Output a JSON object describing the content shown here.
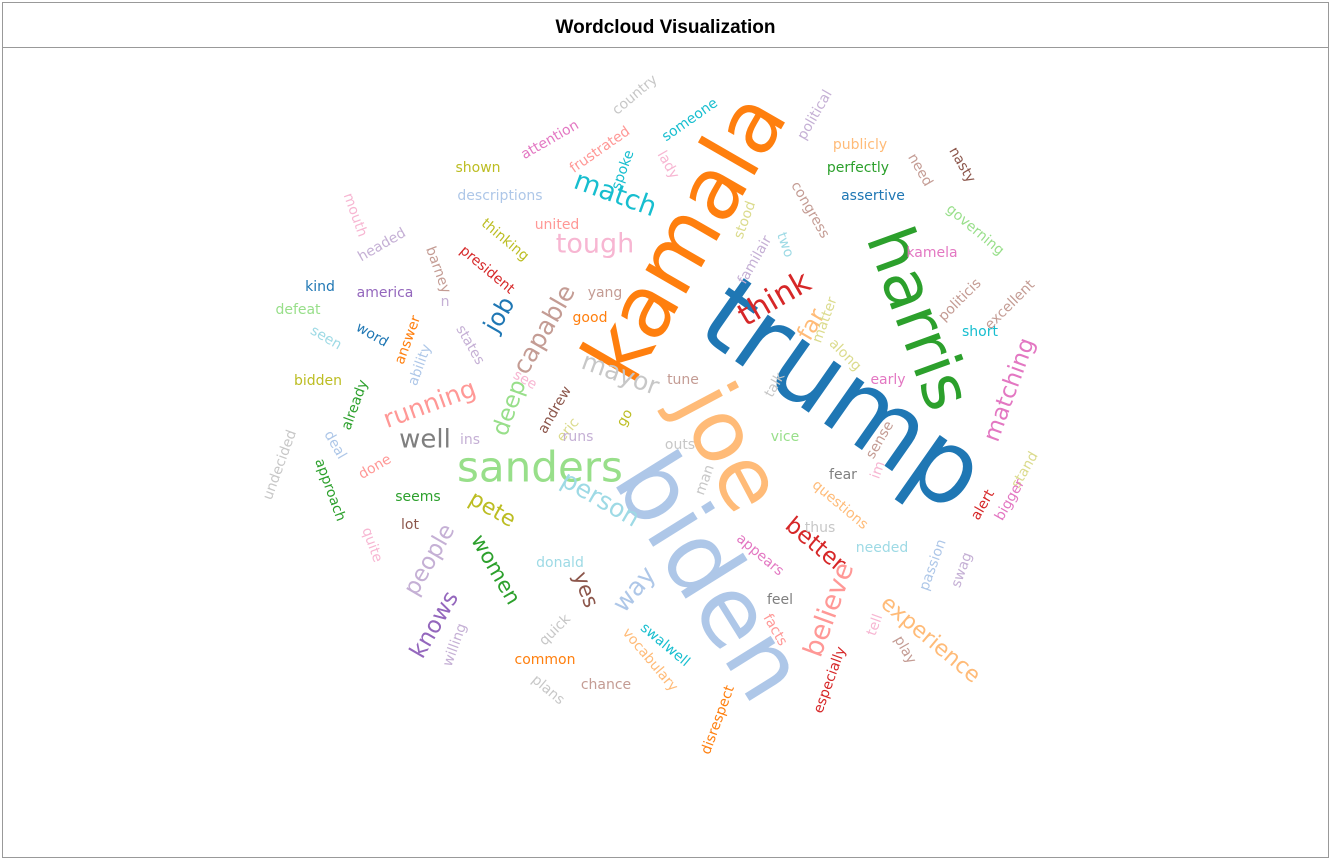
{
  "header": {
    "title": "Wordcloud Visualization"
  },
  "words": [
    {
      "text": "trump",
      "color": "#1f77b4"
    },
    {
      "text": "biden",
      "color": "#aec7e8"
    },
    {
      "text": "kamala",
      "color": "#ff7f0e"
    },
    {
      "text": "joe",
      "color": "#ffbb78"
    },
    {
      "text": "harris",
      "color": "#2ca02c"
    },
    {
      "text": "sanders",
      "color": "#98df8a"
    },
    {
      "text": "think",
      "color": "#d62728"
    },
    {
      "text": "tough",
      "color": "#f7b6d2"
    },
    {
      "text": "match",
      "color": "#17becf"
    },
    {
      "text": "capable",
      "color": "#c49c94"
    },
    {
      "text": "job",
      "color": "#1f77b4"
    },
    {
      "text": "mayor",
      "color": "#c7c7c7"
    },
    {
      "text": "running",
      "color": "#ff9896"
    },
    {
      "text": "well",
      "color": "#7f7f7f"
    },
    {
      "text": "deep",
      "color": "#98df8a"
    },
    {
      "text": "far",
      "color": "#ffbb78"
    },
    {
      "text": "person",
      "color": "#9edae5"
    },
    {
      "text": "pete",
      "color": "#bcbd22"
    },
    {
      "text": "people",
      "color": "#c5b0d5"
    },
    {
      "text": "women",
      "color": "#2ca02c"
    },
    {
      "text": "knows",
      "color": "#9467bd"
    },
    {
      "text": "way",
      "color": "#aec7e8"
    },
    {
      "text": "yes",
      "color": "#8c564b"
    },
    {
      "text": "better",
      "color": "#d62728"
    },
    {
      "text": "believe",
      "color": "#ff9896"
    },
    {
      "text": "experience",
      "color": "#ffbb78"
    },
    {
      "text": "matching",
      "color": "#e377c2"
    },
    {
      "text": "questions",
      "color": "#ffbb78"
    },
    {
      "text": "country",
      "color": "#c7c7c7"
    },
    {
      "text": "someone",
      "color": "#17becf"
    },
    {
      "text": "political",
      "color": "#c5b0d5"
    },
    {
      "text": "attention",
      "color": "#e377c2"
    },
    {
      "text": "frustrated",
      "color": "#ff9896"
    },
    {
      "text": "shown",
      "color": "#bcbd22"
    },
    {
      "text": "publicly",
      "color": "#ffbb78"
    },
    {
      "text": "perfectly",
      "color": "#2ca02c"
    },
    {
      "text": "nasty",
      "color": "#8c564b"
    },
    {
      "text": "need",
      "color": "#c49c94"
    },
    {
      "text": "spoke",
      "color": "#17becf"
    },
    {
      "text": "lady",
      "color": "#f7b6d2"
    },
    {
      "text": "descriptions",
      "color": "#aec7e8"
    },
    {
      "text": "congress",
      "color": "#c49c94"
    },
    {
      "text": "assertive",
      "color": "#1f77b4"
    },
    {
      "text": "mouth",
      "color": "#f7b6d2"
    },
    {
      "text": "governing",
      "color": "#98df8a"
    },
    {
      "text": "united",
      "color": "#ff9896"
    },
    {
      "text": "thinking",
      "color": "#bcbd22"
    },
    {
      "text": "stood",
      "color": "#dbdb8d"
    },
    {
      "text": "headed",
      "color": "#c5b0d5"
    },
    {
      "text": "barney",
      "color": "#c49c94"
    },
    {
      "text": "familair",
      "color": "#c5b0d5"
    },
    {
      "text": "two",
      "color": "#9edae5"
    },
    {
      "text": "president",
      "color": "#d62728"
    },
    {
      "text": "kamela",
      "color": "#e377c2"
    },
    {
      "text": "kind",
      "color": "#1f77b4"
    },
    {
      "text": "america",
      "color": "#9467bd"
    },
    {
      "text": "yang",
      "color": "#c49c94"
    },
    {
      "text": "excellent",
      "color": "#c49c94"
    },
    {
      "text": "politicis",
      "color": "#c49c94"
    },
    {
      "text": "defeat",
      "color": "#98df8a"
    },
    {
      "text": "n",
      "color": "#c5b0d5"
    },
    {
      "text": "good",
      "color": "#ff7f0e"
    },
    {
      "text": "matter",
      "color": "#dbdb8d"
    },
    {
      "text": "word",
      "color": "#1f77b4"
    },
    {
      "text": "seen",
      "color": "#9edae5"
    },
    {
      "text": "answer",
      "color": "#ff7f0e"
    },
    {
      "text": "states",
      "color": "#c5b0d5"
    },
    {
      "text": "ability",
      "color": "#aec7e8"
    },
    {
      "text": "short",
      "color": "#17becf"
    },
    {
      "text": "along",
      "color": "#dbdb8d"
    },
    {
      "text": "bidden",
      "color": "#bcbd22"
    },
    {
      "text": "tune",
      "color": "#c49c94"
    },
    {
      "text": "see",
      "color": "#f7b6d2"
    },
    {
      "text": "talk",
      "color": "#c7c7c7"
    },
    {
      "text": "early",
      "color": "#e377c2"
    },
    {
      "text": "already",
      "color": "#2ca02c"
    },
    {
      "text": "andrew",
      "color": "#8c564b"
    },
    {
      "text": "eric",
      "color": "#dbdb8d"
    },
    {
      "text": "go",
      "color": "#bcbd22"
    },
    {
      "text": "ins",
      "color": "#c5b0d5"
    },
    {
      "text": "runs",
      "color": "#c5b0d5"
    },
    {
      "text": "outs",
      "color": "#c7c7c7"
    },
    {
      "text": "vice",
      "color": "#98df8a"
    },
    {
      "text": "sense",
      "color": "#c49c94"
    },
    {
      "text": "stand",
      "color": "#dbdb8d"
    },
    {
      "text": "undecided",
      "color": "#c7c7c7"
    },
    {
      "text": "deal",
      "color": "#aec7e8"
    },
    {
      "text": "approach",
      "color": "#2ca02c"
    },
    {
      "text": "done",
      "color": "#ff9896"
    },
    {
      "text": "man",
      "color": "#c7c7c7"
    },
    {
      "text": "fear",
      "color": "#7f7f7f"
    },
    {
      "text": "im",
      "color": "#f7b6d2"
    },
    {
      "text": "bigger",
      "color": "#e377c2"
    },
    {
      "text": "seems",
      "color": "#2ca02c"
    },
    {
      "text": "alert",
      "color": "#d62728"
    },
    {
      "text": "lot",
      "color": "#8c564b"
    },
    {
      "text": "thus",
      "color": "#c7c7c7"
    },
    {
      "text": "needed",
      "color": "#9edae5"
    },
    {
      "text": "quite",
      "color": "#f7b6d2"
    },
    {
      "text": "appears",
      "color": "#e377c2"
    },
    {
      "text": "passion",
      "color": "#aec7e8"
    },
    {
      "text": "swag",
      "color": "#c5b0d5"
    },
    {
      "text": "donald",
      "color": "#9edae5"
    },
    {
      "text": "feel",
      "color": "#7f7f7f"
    },
    {
      "text": "willing",
      "color": "#c5b0d5"
    },
    {
      "text": "quick",
      "color": "#c7c7c7"
    },
    {
      "text": "facts",
      "color": "#ff9896"
    },
    {
      "text": "tell",
      "color": "#f7b6d2"
    },
    {
      "text": "swalwell",
      "color": "#17becf"
    },
    {
      "text": "common",
      "color": "#ff7f0e"
    },
    {
      "text": "vocabulary",
      "color": "#ffbb78"
    },
    {
      "text": "play",
      "color": "#c49c94"
    },
    {
      "text": "plans",
      "color": "#c7c7c7"
    },
    {
      "text": "chance",
      "color": "#c49c94"
    },
    {
      "text": "especially",
      "color": "#d62728"
    },
    {
      "text": "disrespect",
      "color": "#ff7f0e"
    }
  ]
}
